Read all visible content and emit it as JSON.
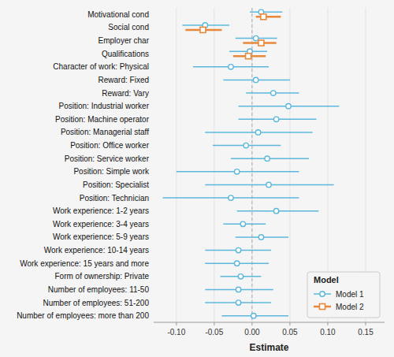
{
  "chart_data": {
    "type": "forest",
    "orientation": "horizontal",
    "categories": [
      "Motivational cond",
      "Social cond",
      "Employer char",
      "Qualifications",
      "Character of work: Physical",
      "Reward: Fixed",
      "Reward: Vary",
      "Position: Industrial worker",
      "Position: Machine operator",
      "Position: Managerial staff",
      "Position: Office worker",
      "Position: Service worker",
      "Position: Simple work",
      "Position: Specialist",
      "Position: Technician",
      "Work experience: 1-2 years",
      "Work experience: 3-4 years",
      "Work experience: 5-9 years",
      "Work experience: 10-14 years",
      "Work experience: 15 years and more",
      "Form of ownership: Private",
      "Number of employees: 11-50",
      "Number of employees: 51-200",
      "Number of employees: more than 200"
    ],
    "series": [
      {
        "name": "Model 1",
        "color": "#5BB8DB",
        "marker": "circle",
        "values": [
          0.012,
          -0.062,
          0.005,
          -0.003,
          -0.028,
          0.005,
          0.028,
          0.048,
          0.032,
          0.008,
          -0.008,
          0.02,
          -0.02,
          0.022,
          -0.028,
          0.032,
          -0.012,
          0.012,
          -0.018,
          -0.02,
          -0.015,
          -0.018,
          -0.018,
          0.002
        ],
        "ci_low": [
          -0.003,
          -0.092,
          -0.022,
          -0.03,
          -0.078,
          -0.038,
          -0.008,
          -0.018,
          -0.018,
          -0.062,
          -0.052,
          -0.028,
          -0.1,
          -0.062,
          -0.118,
          -0.02,
          -0.038,
          -0.022,
          -0.062,
          -0.062,
          -0.042,
          -0.062,
          -0.062,
          -0.04
        ],
        "ci_high": [
          0.04,
          -0.03,
          0.033,
          0.02,
          0.022,
          0.05,
          0.062,
          0.115,
          0.085,
          0.08,
          0.038,
          0.075,
          0.062,
          0.108,
          0.062,
          0.088,
          0.018,
          0.048,
          0.025,
          0.022,
          0.012,
          0.028,
          0.025,
          0.048
        ]
      },
      {
        "name": "Model 2",
        "color": "#E8883A",
        "marker": "square",
        "values": [
          0.015,
          -0.065,
          0.012,
          -0.005,
          null,
          null,
          null,
          null,
          null,
          null,
          null,
          null,
          null,
          null,
          null,
          null,
          null,
          null,
          null,
          null,
          null,
          null,
          null,
          null
        ],
        "ci_low": [
          0.005,
          -0.088,
          -0.012,
          -0.025,
          null,
          null,
          null,
          null,
          null,
          null,
          null,
          null,
          null,
          null,
          null,
          null,
          null,
          null,
          null,
          null,
          null,
          null,
          null,
          null
        ],
        "ci_high": [
          0.038,
          -0.04,
          0.032,
          0.018,
          null,
          null,
          null,
          null,
          null,
          null,
          null,
          null,
          null,
          null,
          null,
          null,
          null,
          null,
          null,
          null,
          null,
          null,
          null,
          null
        ]
      }
    ],
    "xlabel": "Estimate",
    "xlim": [
      -0.13,
      0.175
    ],
    "xticks": [
      {
        "value": -0.1,
        "label": "-0.10"
      },
      -0.05,
      {
        "value": 0.0,
        "label": "0.00"
      },
      0.05,
      {
        "value": 0.1,
        "label": "0.10"
      },
      {
        "value": 0.15,
        "label": "0.15"
      }
    ],
    "reference_line": 0.0,
    "grid": true,
    "legend": "lower right",
    "legend_title": "Model"
  }
}
